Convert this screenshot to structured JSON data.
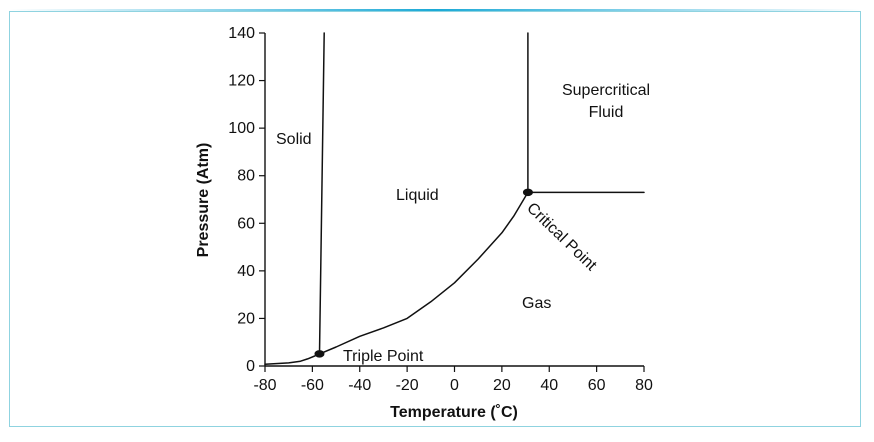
{
  "chart_data": {
    "type": "line",
    "title": "",
    "xlabel": "Temperature (˚C)",
    "ylabel": "Pressure (Atm)",
    "xlim": [
      -80,
      80
    ],
    "ylim": [
      0,
      140
    ],
    "x_ticks": [
      -80,
      -60,
      -40,
      -20,
      0,
      20,
      40,
      60,
      80
    ],
    "y_ticks": [
      0,
      20,
      40,
      60,
      80,
      100,
      120,
      140
    ],
    "grid": false,
    "series": [
      {
        "x": [
          -57,
          -55
        ],
        "y": [
          5.1,
          140
        ]
      },
      {
        "x": [
          -80,
          -70,
          -65,
          -62,
          -59,
          -57
        ],
        "y": [
          0.7,
          1.3,
          2.0,
          3.0,
          4.2,
          5.1
        ]
      },
      {
        "x": [
          -57,
          -50,
          -40,
          -30,
          -20,
          -10,
          0,
          10,
          20,
          25,
          31
        ],
        "y": [
          5.1,
          8.0,
          12.5,
          16.0,
          20.0,
          27.0,
          35.0,
          45.0,
          56.0,
          63.0,
          73.0
        ]
      },
      {
        "x": [
          31,
          31
        ],
        "y": [
          73,
          140
        ]
      },
      {
        "x": [
          31,
          80
        ],
        "y": [
          73,
          73
        ]
      }
    ],
    "points": [
      {
        "x": -57,
        "y": 5.1
      },
      {
        "x": 31,
        "y": 73
      }
    ],
    "annotations": {
      "solid": "Solid",
      "liquid": "Liquid",
      "gas": "Gas",
      "supercritical_line1": "Supercritical",
      "supercritical_line2": "Fluid",
      "triple_point": "Triple Point",
      "critical_point": "Critical Point"
    }
  }
}
